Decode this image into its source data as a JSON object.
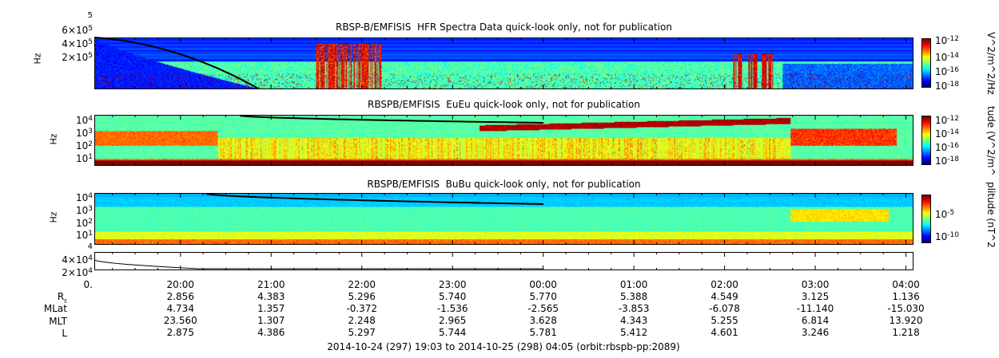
{
  "chart_data": [
    {
      "type": "heatmap",
      "title": "RBSP-B/EMFISIS  HFR Spectra Data quick-look only, not for publication",
      "ylabel": "Hz",
      "yticks": [
        {
          "base": "2×10",
          "exp": "5"
        },
        {
          "base": "4×10",
          "exp": "5"
        },
        {
          "base": "6×10",
          "exp": "5"
        }
      ],
      "ytick_overflow": "5",
      "colorbar_label": "V^2/m^2/Hz",
      "colorbar_ticks": [
        {
          "base": "10",
          "exp": "-12"
        },
        {
          "base": "10",
          "exp": "-14"
        },
        {
          "base": "10",
          "exp": "-16"
        },
        {
          "base": "10",
          "exp": "-18"
        }
      ],
      "zlim_exp": [
        -18,
        -11.5
      ]
    },
    {
      "type": "heatmap",
      "title": "RBSPB/EMFISIS  EuEu quick-look only, not for publication",
      "ylabel": "Hz",
      "yticks": [
        {
          "base": "10",
          "exp": "4"
        },
        {
          "base": "10",
          "exp": "3"
        },
        {
          "base": "10",
          "exp": "2"
        },
        {
          "base": "10",
          "exp": "1"
        }
      ],
      "colorbar_label": "tude (V^2/m^",
      "colorbar_ticks": [
        {
          "base": "10",
          "exp": "-12"
        },
        {
          "base": "10",
          "exp": "-14"
        },
        {
          "base": "10",
          "exp": "-16"
        },
        {
          "base": "10",
          "exp": "-18"
        }
      ],
      "zlim_exp": [
        -18.5,
        -10.5
      ]
    },
    {
      "type": "heatmap",
      "title": "RBSPB/EMFISIS  BuBu quick-look only, not for publication",
      "ylabel": "Hz",
      "yticks": [
        {
          "base": "10",
          "exp": "4"
        },
        {
          "base": "10",
          "exp": "3"
        },
        {
          "base": "10",
          "exp": "2"
        },
        {
          "base": "10",
          "exp": "1"
        }
      ],
      "colorbar_label": "plitude (nT^2",
      "colorbar_ticks": [
        {
          "base": "10",
          "exp": "-5"
        },
        {
          "base": "10",
          "exp": "-10"
        }
      ],
      "zlim_exp": [
        -13,
        -1
      ]
    },
    {
      "type": "line",
      "yticks": [
        {
          "base": "4×10",
          "exp": "4"
        },
        {
          "base": "2×10",
          "exp": "4"
        },
        {
          "base": "0.",
          "exp": ""
        }
      ],
      "ytick_overflow": "4"
    }
  ],
  "time_axis": {
    "start": "19:03",
    "end": "04:05",
    "ticks": [
      "20:00",
      "21:00",
      "22:00",
      "23:00",
      "00:00",
      "01:00",
      "02:00",
      "03:00",
      "04:00"
    ]
  },
  "ephemeris": {
    "rows": [
      {
        "label": "R",
        "sub": "E",
        "values": [
          "2.856",
          "4.383",
          "5.296",
          "5.740",
          "5.770",
          "5.388",
          "4.549",
          "3.125",
          "1.136"
        ]
      },
      {
        "label": "MLat",
        "sub": "",
        "values": [
          "4.734",
          "1.357",
          "-0.372",
          "-1.536",
          "-2.565",
          "-3.853",
          "-6.078",
          "-11.140",
          "-15.030"
        ]
      },
      {
        "label": "MLT",
        "sub": "",
        "values": [
          "23.560",
          "1.307",
          "2.248",
          "2.965",
          "3.628",
          "4.343",
          "5.255",
          "6.814",
          "13.920"
        ]
      },
      {
        "label": "L",
        "sub": "",
        "values": [
          "2.875",
          "4.386",
          "5.297",
          "5.744",
          "5.781",
          "5.412",
          "4.601",
          "3.246",
          "1.218"
        ]
      }
    ]
  },
  "footer": "2014-10-24 (297) 19:03 to 2014-10-25 (298) 04:05 (orbit:rbspb-pp:2089)",
  "colors": {
    "line": "#000000",
    "axis": "#000000"
  }
}
